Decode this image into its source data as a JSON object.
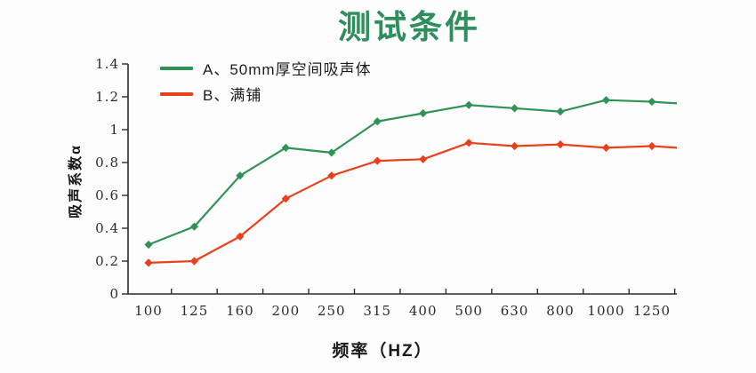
{
  "page": {
    "background": "#fdfdfd"
  },
  "title": {
    "text": "测试条件",
    "color": "#2f8f5c"
  },
  "chart_data": {
    "type": "line",
    "title": "测试条件",
    "xlabel": "频率（HZ）",
    "ylabel": "吸声系数α",
    "categories": [
      "100",
      "125",
      "160",
      "200",
      "250",
      "315",
      "400",
      "500",
      "630",
      "800",
      "1000",
      "1250"
    ],
    "series": [
      {
        "name": "A、50mm厚空间吸声体",
        "color": "#2f9355",
        "marker": "diamond",
        "values": [
          0.3,
          0.41,
          0.72,
          0.89,
          0.86,
          1.05,
          1.1,
          1.15,
          1.13,
          1.11,
          1.18,
          1.17
        ],
        "edge_value": 1.16
      },
      {
        "name": "B、满铺",
        "color": "#e8401a",
        "marker": "diamond",
        "values": [
          0.19,
          0.2,
          0.35,
          0.58,
          0.72,
          0.81,
          0.82,
          0.92,
          0.9,
          0.91,
          0.89,
          0.9
        ],
        "edge_value": 0.89
      }
    ],
    "ylim": [
      0,
      1.4
    ],
    "y_ticks": [
      "0",
      "0.2",
      "0.4",
      "0.6",
      "0.8",
      "1",
      "1.2",
      "1.4"
    ],
    "grid": false,
    "legend_position": "top-left",
    "axis_color": "#2b2b2b"
  }
}
